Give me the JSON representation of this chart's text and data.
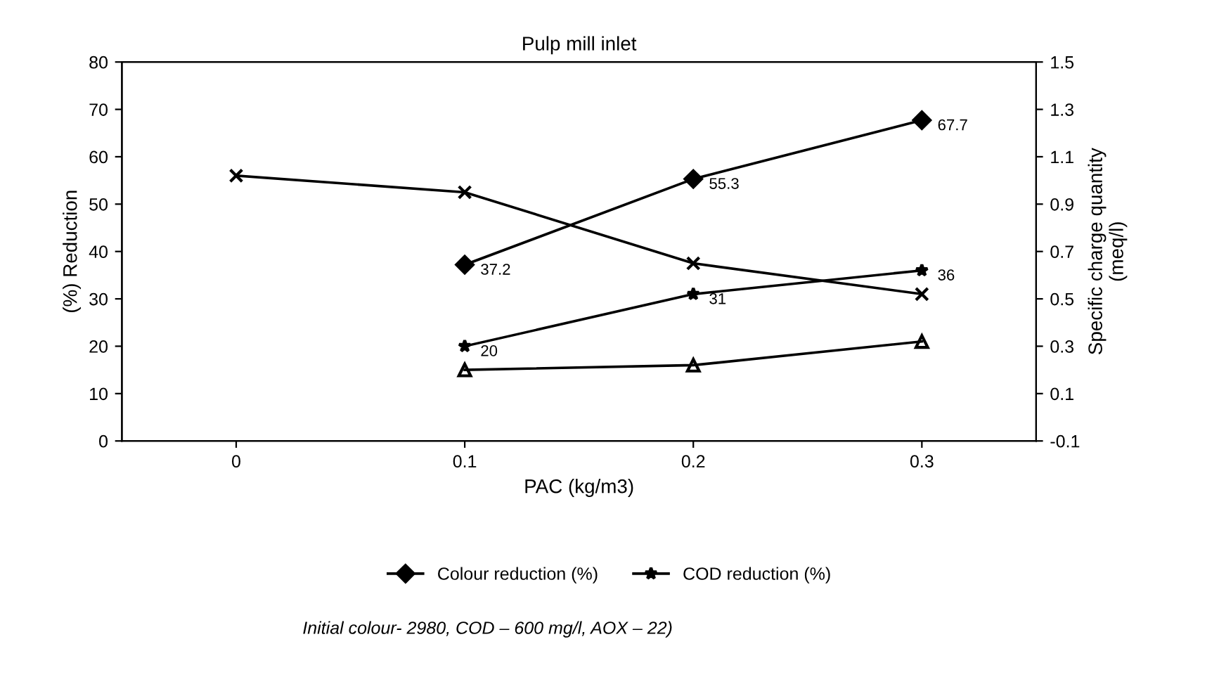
{
  "chart_data": {
    "type": "line",
    "title": "Pulp mill inlet",
    "xlabel": "PAC (kg/m3)",
    "ylabel": "(%) Reduction",
    "y2label": "Specific charge quantity\n(meq/l)",
    "categories": [
      "0",
      "0.1",
      "0.2",
      "0.3"
    ],
    "series": [
      {
        "name": "Colour reduction (%)",
        "color": "#000000",
        "marker": "diamond",
        "values": [
          null,
          37.2,
          55.3,
          67.7
        ],
        "value_labels": [
          null,
          "37.2",
          "55.3",
          "67.7"
        ]
      },
      {
        "name": "COD reduction (%)",
        "color": "#000000",
        "marker": "star",
        "values": [
          null,
          20,
          31,
          36
        ],
        "value_labels": [
          null,
          "20",
          "31",
          "36"
        ]
      },
      {
        "color": "#000000",
        "marker": "triangle",
        "values": [
          null,
          15,
          16,
          21
        ]
      },
      {
        "color": "#000000",
        "marker": "cross",
        "axis": "y2",
        "values": [
          1.02,
          0.95,
          0.65,
          0.52
        ]
      }
    ],
    "ylim": [
      0,
      80
    ],
    "yticks": [
      0,
      10,
      20,
      30,
      40,
      50,
      60,
      70,
      80
    ],
    "y2lim": [
      -0.1,
      1.5
    ],
    "y2ticks": [
      -0.1,
      0.1,
      0.3,
      0.5,
      0.7,
      0.9,
      1.1,
      1.3,
      1.5
    ],
    "grid": false,
    "legend": "bottom",
    "line_style": "solid",
    "annotations": [
      "Initial colour- 2980, COD – 600 mg/l, AOX – 22)"
    ]
  }
}
